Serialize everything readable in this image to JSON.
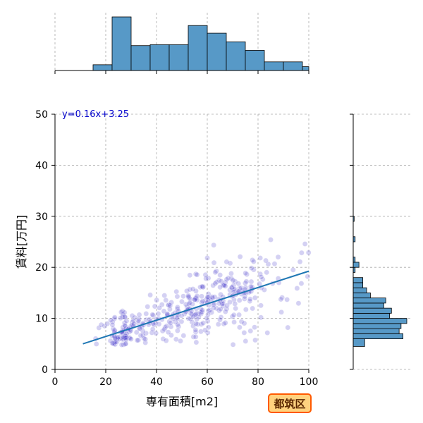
{
  "chart_data": {
    "type": "scatter",
    "title": "",
    "xlabel": "専有面積[m2]",
    "ylabel": "賃料[万円]",
    "xlim": [
      0,
      100
    ],
    "ylim": [
      0,
      50
    ],
    "xticks": [
      "0",
      "20",
      "40",
      "60",
      "80",
      "100"
    ],
    "yticks": [
      "0",
      "10",
      "20",
      "30",
      "40",
      "50"
    ],
    "grid": true,
    "regression": {
      "equation": "y=0.16x+3.25",
      "slope": 0.16,
      "intercept": 3.25,
      "x_range": [
        11,
        100
      ],
      "color": "#1f77b4"
    },
    "scatter_style": {
      "fill": "#3b2fc9",
      "alpha": 0.22
    },
    "marginal_x_histogram": {
      "bin_edges": [
        0,
        7.5,
        15,
        22.5,
        30,
        37.5,
        45,
        52.5,
        60,
        67.5,
        75,
        82.5,
        90,
        97.5,
        100
      ],
      "counts": [
        0,
        0,
        3,
        28,
        13,
        13.5,
        13.5,
        23.5,
        19.5,
        15,
        10.5,
        4.5,
        4.5,
        2
      ],
      "color": "#5799c7"
    },
    "marginal_y_histogram": {
      "bin_edges": [
        4.5,
        6,
        7,
        8,
        9,
        10,
        11,
        12,
        13,
        14,
        15,
        16,
        17,
        18,
        19,
        20,
        21,
        22,
        23,
        24,
        25,
        26,
        27,
        28,
        29,
        30
      ],
      "counts": [
        6,
        26,
        24,
        25,
        28,
        19,
        20,
        16,
        17,
        9,
        7,
        5,
        5,
        0,
        1,
        3,
        1,
        0,
        0,
        0,
        1,
        0,
        0,
        0,
        0.5
      ],
      "color": "#5799c7"
    }
  },
  "badge": {
    "label": "都筑区",
    "fill": "#ffd27f",
    "border": "#ff5a00"
  }
}
